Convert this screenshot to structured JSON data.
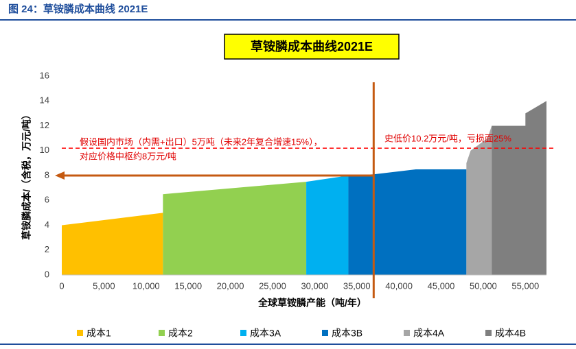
{
  "caption": "图 24：草铵膦成本曲线 2021E",
  "chart_data": {
    "type": "area",
    "title": "草铵膦成本曲线2021E",
    "x_label": "全球草铵膦产能（吨/年）",
    "y_label": "草铵膦成本/（含税，万元/吨）",
    "xlim": [
      0,
      57500
    ],
    "ylim": [
      0,
      16
    ],
    "xticks": [
      0,
      {
        "value": 5000,
        "label": "5,000"
      },
      {
        "value": 10000,
        "label": "10,000"
      },
      {
        "value": 15000,
        "label": "15,000"
      },
      {
        "value": 20000,
        "label": "20,000"
      },
      {
        "value": 25000,
        "label": "25,000"
      },
      {
        "value": 30000,
        "label": "30,000"
      },
      {
        "value": 35000,
        "label": "35,000"
      },
      {
        "value": 40000,
        "label": "40,000"
      },
      {
        "value": 45000,
        "label": "45,000"
      },
      {
        "value": 50000,
        "label": "50,000"
      },
      {
        "value": 55000,
        "label": "55,000"
      }
    ],
    "yticks": [
      0,
      2,
      4,
      6,
      8,
      10,
      12,
      14,
      16
    ],
    "series": [
      {
        "name": "成本1",
        "color": "#ffc000",
        "x": [
          0,
          12000
        ],
        "values": [
          4.0,
          5.0
        ]
      },
      {
        "name": "成本2",
        "color": "#92d050",
        "x": [
          12000,
          29000
        ],
        "values": [
          6.5,
          7.5
        ]
      },
      {
        "name": "成本3A",
        "color": "#00b0f0",
        "x": [
          29000,
          34000
        ],
        "values": [
          7.5,
          8.0
        ]
      },
      {
        "name": "成本3B",
        "color": "#0070c0",
        "x": [
          34000,
          37000,
          42000,
          48000
        ],
        "values": [
          8.0,
          8.1,
          8.5,
          8.5
        ]
      },
      {
        "name": "成本4A",
        "color": "#a6a6a6",
        "x": [
          48000,
          48500,
          50500,
          51000
        ],
        "values": [
          9.0,
          10.0,
          11.0,
          12.0
        ]
      },
      {
        "name": "成本4B",
        "color": "#7f7f7f",
        "x": [
          51000,
          55000,
          55000,
          57500
        ],
        "values": [
          12.0,
          12.0,
          13.0,
          14.0
        ]
      }
    ],
    "hline": {
      "value": 10.2,
      "color": "#ff0000"
    },
    "vline": {
      "value": 37000,
      "color": "#c55a11"
    },
    "arrow": {
      "value": 8,
      "color": "#c55a11"
    },
    "annotations": [
      "假设国内市场（内需+出口）5万吨（未来2年复合增速15%），",
      "对应价格中枢约8万元/吨",
      "史低价10.2万元/吨，亏损面25%"
    ]
  }
}
